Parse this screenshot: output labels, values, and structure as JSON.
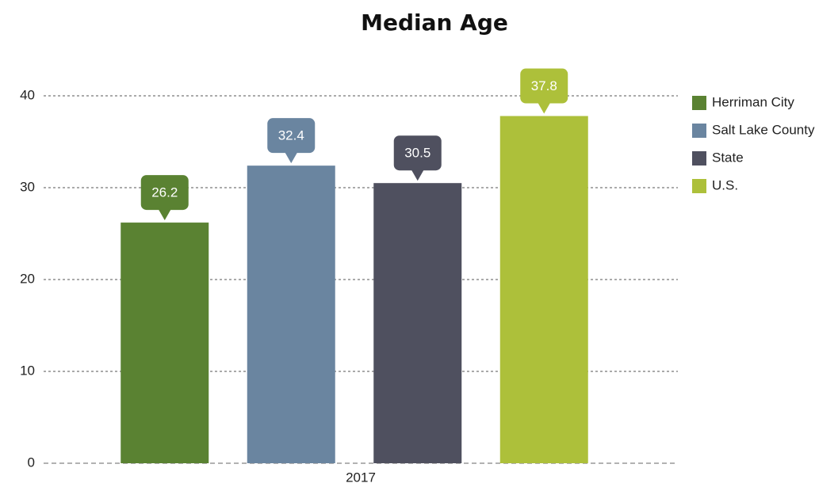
{
  "chart_data": {
    "type": "bar",
    "title": "Median Age",
    "categories": [
      "2017"
    ],
    "series": [
      {
        "name": "Herriman City",
        "color": "#5a8232",
        "values": [
          26.2
        ]
      },
      {
        "name": "Salt Lake County",
        "color": "#6a85a0",
        "values": [
          32.4
        ]
      },
      {
        "name": "State",
        "color": "#4f505f",
        "values": [
          30.5
        ]
      },
      {
        "name": "U.S.",
        "color": "#adc03a",
        "values": [
          37.8
        ]
      }
    ],
    "ylim": [
      0,
      40
    ],
    "yticks": [
      0,
      10,
      20,
      30,
      40
    ],
    "grid": true,
    "legend": "right"
  }
}
